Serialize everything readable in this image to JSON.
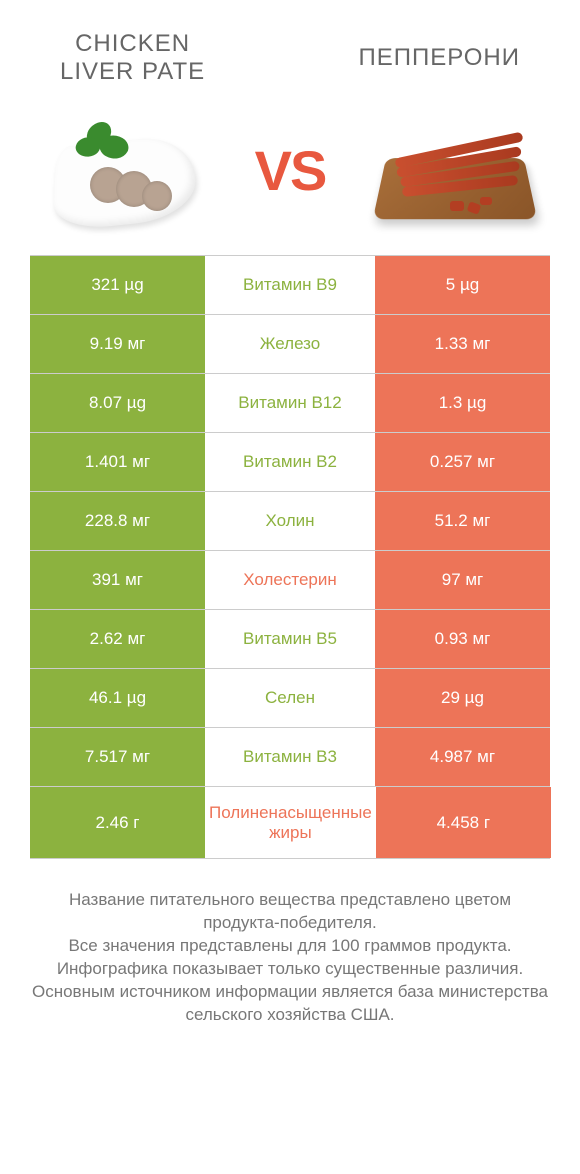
{
  "header": {
    "left_title": "CHICKEN\nLIVER PATE",
    "right_title": "ПЕППЕРОНИ",
    "vs": "VS"
  },
  "colors": {
    "left": "#8cb23f",
    "right": "#ed7458",
    "vs": "#e8583f",
    "row_border": "#cccccc",
    "background": "#ffffff"
  },
  "rows": [
    {
      "left": "321 µg",
      "center": "Витамин B9",
      "right": "5 µg",
      "winner": "left"
    },
    {
      "left": "9.19 мг",
      "center": "Железо",
      "right": "1.33 мг",
      "winner": "left"
    },
    {
      "left": "8.07 µg",
      "center": "Витамин B12",
      "right": "1.3 µg",
      "winner": "left"
    },
    {
      "left": "1.401 мг",
      "center": "Витамин B2",
      "right": "0.257 мг",
      "winner": "left"
    },
    {
      "left": "228.8 мг",
      "center": "Холин",
      "right": "51.2 мг",
      "winner": "left"
    },
    {
      "left": "391 мг",
      "center": "Холестерин",
      "right": "97 мг",
      "winner": "right"
    },
    {
      "left": "2.62 мг",
      "center": "Витамин B5",
      "right": "0.93 мг",
      "winner": "left"
    },
    {
      "left": "46.1 µg",
      "center": "Селен",
      "right": "29 µg",
      "winner": "left"
    },
    {
      "left": "7.517 мг",
      "center": "Витамин B3",
      "right": "4.987 мг",
      "winner": "left"
    },
    {
      "left": "2.46 г",
      "center": "Полиненасыщенные жиры",
      "right": "4.458 г",
      "winner": "right"
    }
  ],
  "footer": {
    "line1": "Название питательного вещества представлено цветом продукта-победителя.",
    "line2": "Все значения представлены для 100 граммов продукта.",
    "line3": "Инфографика показывает только существенные различия.",
    "line4": "Основным источником информации является база министерства сельского хозяйства США."
  }
}
